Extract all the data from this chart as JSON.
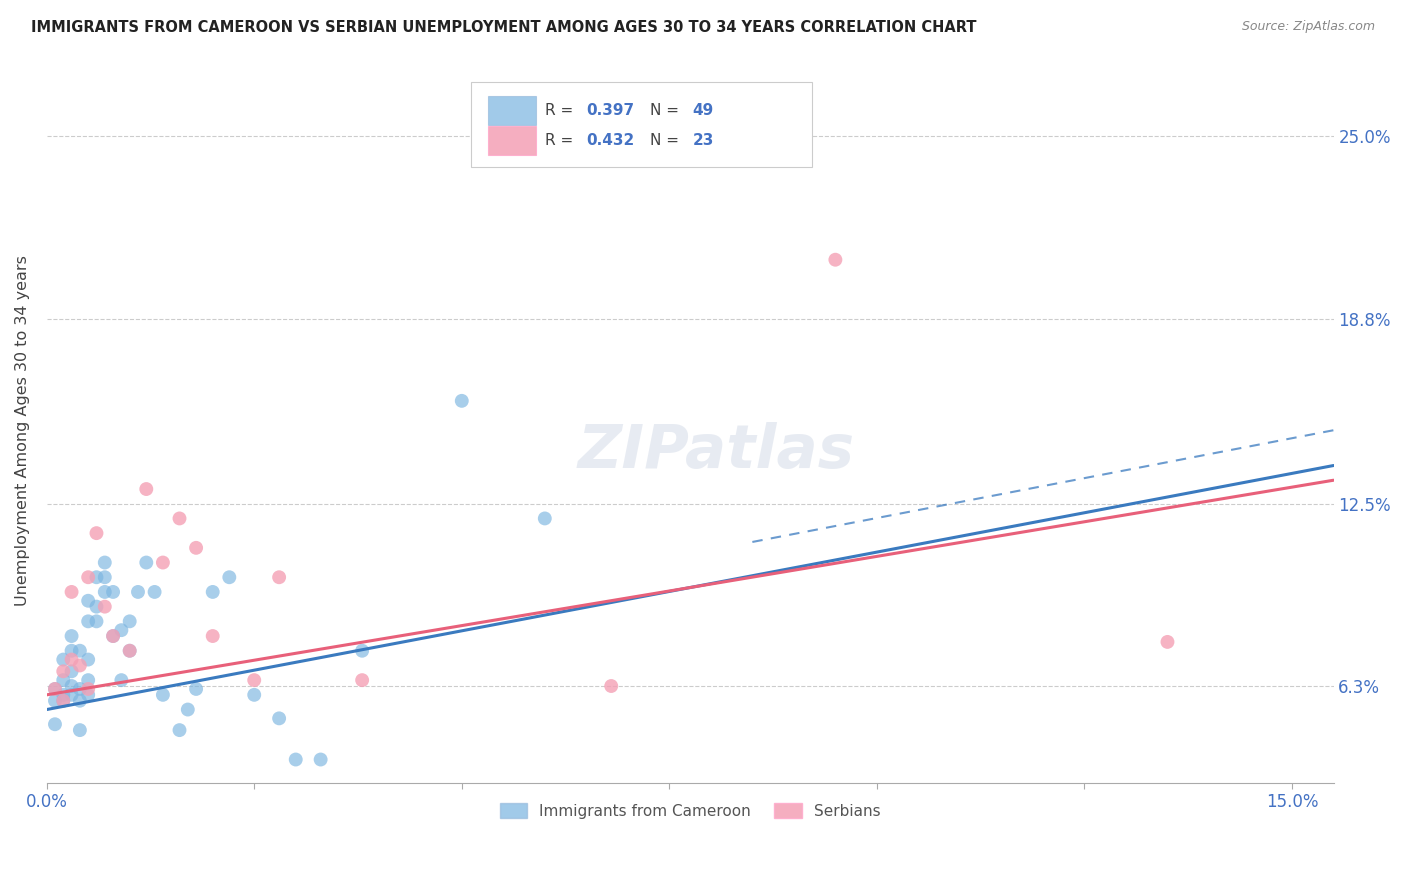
{
  "title": "IMMIGRANTS FROM CAMEROON VS SERBIAN UNEMPLOYMENT AMONG AGES 30 TO 34 YEARS CORRELATION CHART",
  "source": "Source: ZipAtlas.com",
  "ylabel": "Unemployment Among Ages 30 to 34 years",
  "xlim": [
    0.0,
    0.155
  ],
  "ylim": [
    0.03,
    0.27
  ],
  "ytick_vals": [
    0.063,
    0.125,
    0.188,
    0.25
  ],
  "ytick_labels": [
    "6.3%",
    "12.5%",
    "18.8%",
    "25.0%"
  ],
  "xtick_vals": [
    0.0,
    0.025,
    0.05,
    0.075,
    0.1,
    0.125,
    0.15
  ],
  "xtick_labels": [
    "0.0%",
    "",
    "",
    "",
    "",
    "",
    "15.0%"
  ],
  "cameroon_R": "0.397",
  "cameroon_N": "49",
  "serbian_R": "0.432",
  "serbian_N": "23",
  "blue_color": "#7ab4e0",
  "pink_color": "#f4a0b5",
  "blue_line_color": "#3a7abf",
  "pink_line_color": "#e8607a",
  "watermark_text": "ZIPatlas",
  "cameroon_x": [
    0.001,
    0.001,
    0.001,
    0.002,
    0.002,
    0.002,
    0.002,
    0.003,
    0.003,
    0.003,
    0.003,
    0.003,
    0.004,
    0.004,
    0.004,
    0.004,
    0.005,
    0.005,
    0.005,
    0.005,
    0.005,
    0.006,
    0.006,
    0.006,
    0.007,
    0.007,
    0.007,
    0.008,
    0.008,
    0.009,
    0.009,
    0.01,
    0.01,
    0.011,
    0.012,
    0.013,
    0.014,
    0.016,
    0.017,
    0.018,
    0.02,
    0.022,
    0.025,
    0.028,
    0.03,
    0.033,
    0.038,
    0.05,
    0.06
  ],
  "cameroon_y": [
    0.058,
    0.062,
    0.05,
    0.06,
    0.058,
    0.065,
    0.072,
    0.063,
    0.068,
    0.06,
    0.075,
    0.08,
    0.062,
    0.075,
    0.058,
    0.048,
    0.065,
    0.06,
    0.092,
    0.085,
    0.072,
    0.09,
    0.1,
    0.085,
    0.095,
    0.1,
    0.105,
    0.095,
    0.08,
    0.065,
    0.082,
    0.085,
    0.075,
    0.095,
    0.105,
    0.095,
    0.06,
    0.048,
    0.055,
    0.062,
    0.095,
    0.1,
    0.06,
    0.052,
    0.038,
    0.038,
    0.075,
    0.16,
    0.12
  ],
  "serbian_x": [
    0.001,
    0.002,
    0.002,
    0.003,
    0.003,
    0.004,
    0.005,
    0.005,
    0.006,
    0.007,
    0.008,
    0.01,
    0.012,
    0.014,
    0.016,
    0.018,
    0.02,
    0.025,
    0.028,
    0.038,
    0.068,
    0.095,
    0.135
  ],
  "serbian_y": [
    0.062,
    0.068,
    0.058,
    0.072,
    0.095,
    0.07,
    0.1,
    0.062,
    0.115,
    0.09,
    0.08,
    0.075,
    0.13,
    0.105,
    0.12,
    0.11,
    0.08,
    0.065,
    0.1,
    0.065,
    0.063,
    0.208,
    0.078
  ],
  "blue_line_x0": 0.0,
  "blue_line_y0": 0.055,
  "blue_line_x1": 0.155,
  "blue_line_y1": 0.138,
  "pink_line_x0": 0.0,
  "pink_line_y0": 0.06,
  "pink_line_x1": 0.155,
  "pink_line_y1": 0.133,
  "dash_line_x0": 0.085,
  "dash_line_y0": 0.112,
  "dash_line_x1": 0.155,
  "dash_line_y1": 0.15
}
